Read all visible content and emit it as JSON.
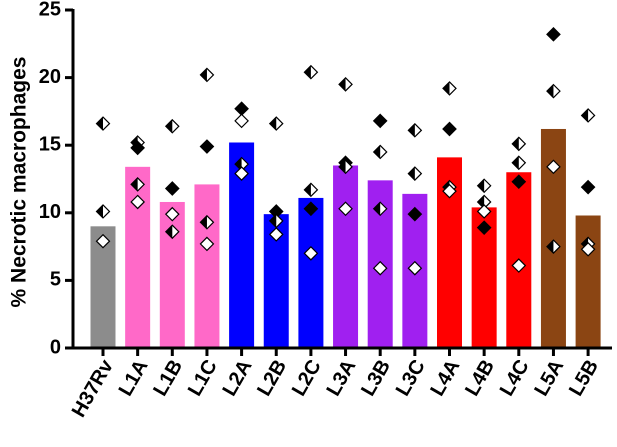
{
  "chart_data": {
    "type": "bar",
    "title": "",
    "xlabel": "",
    "ylabel": "% Necrotic macrophages",
    "ylim": [
      0,
      25
    ],
    "yticks": [
      0,
      5,
      10,
      15,
      20,
      25
    ],
    "grid": false,
    "legend": "none",
    "categories": [
      "H37Rv",
      "L1A",
      "L1B",
      "L1C",
      "L2A",
      "L2B",
      "L2C",
      "L3A",
      "L3B",
      "L3C",
      "L4A",
      "L4B",
      "L4C",
      "L5A",
      "L5B"
    ],
    "values": [
      9.0,
      13.4,
      10.8,
      12.1,
      15.2,
      9.9,
      11.1,
      13.5,
      12.4,
      11.4,
      14.1,
      10.4,
      13.0,
      16.2,
      9.8
    ],
    "colors": [
      "#8c8c8c",
      "#ff69c8",
      "#ff69c8",
      "#ff69c8",
      "#0000ff",
      "#0000ff",
      "#0000ff",
      "#a020f0",
      "#a020f0",
      "#a020f0",
      "#ff0000",
      "#ff0000",
      "#ff0000",
      "#8b4513",
      "#8b4513"
    ],
    "replicates": [
      [
        {
          "v": 16.6,
          "m": "half"
        },
        {
          "v": 10.1,
          "m": "half"
        },
        {
          "v": 7.9,
          "m": "open"
        }
      ],
      [
        {
          "v": 15.2,
          "m": "half"
        },
        {
          "v": 14.8,
          "m": "filled"
        },
        {
          "v": 12.1,
          "m": "half"
        },
        {
          "v": 10.8,
          "m": "open"
        }
      ],
      [
        {
          "v": 16.4,
          "m": "half"
        },
        {
          "v": 11.8,
          "m": "filled"
        },
        {
          "v": 9.9,
          "m": "open"
        },
        {
          "v": 8.6,
          "m": "half"
        }
      ],
      [
        {
          "v": 20.2,
          "m": "half"
        },
        {
          "v": 14.9,
          "m": "filled"
        },
        {
          "v": 9.3,
          "m": "half"
        },
        {
          "v": 7.7,
          "m": "open"
        }
      ],
      [
        {
          "v": 17.7,
          "m": "filled"
        },
        {
          "v": 16.8,
          "m": "open"
        },
        {
          "v": 13.6,
          "m": "half"
        },
        {
          "v": 12.9,
          "m": "open"
        }
      ],
      [
        {
          "v": 16.6,
          "m": "half"
        },
        {
          "v": 10.1,
          "m": "filled"
        },
        {
          "v": 9.4,
          "m": "half"
        },
        {
          "v": 8.4,
          "m": "open"
        }
      ],
      [
        {
          "v": 20.4,
          "m": "half"
        },
        {
          "v": 11.7,
          "m": "half"
        },
        {
          "v": 10.3,
          "m": "filled"
        },
        {
          "v": 7.0,
          "m": "open"
        }
      ],
      [
        {
          "v": 19.5,
          "m": "half"
        },
        {
          "v": 13.7,
          "m": "filled"
        },
        {
          "v": 13.4,
          "m": "half"
        },
        {
          "v": 10.3,
          "m": "open"
        }
      ],
      [
        {
          "v": 16.8,
          "m": "filled"
        },
        {
          "v": 14.5,
          "m": "half"
        },
        {
          "v": 10.3,
          "m": "half"
        },
        {
          "v": 5.9,
          "m": "open"
        }
      ],
      [
        {
          "v": 16.1,
          "m": "half"
        },
        {
          "v": 12.9,
          "m": "half"
        },
        {
          "v": 9.9,
          "m": "filled"
        },
        {
          "v": 5.9,
          "m": "open"
        }
      ],
      [
        {
          "v": 19.2,
          "m": "half"
        },
        {
          "v": 16.2,
          "m": "filled"
        },
        {
          "v": 11.9,
          "m": "half"
        },
        {
          "v": 11.6,
          "m": "open"
        }
      ],
      [
        {
          "v": 12.0,
          "m": "half"
        },
        {
          "v": 10.8,
          "m": "half"
        },
        {
          "v": 10.1,
          "m": "open"
        },
        {
          "v": 8.9,
          "m": "filled"
        }
      ],
      [
        {
          "v": 15.1,
          "m": "half"
        },
        {
          "v": 13.7,
          "m": "half"
        },
        {
          "v": 12.3,
          "m": "filled"
        },
        {
          "v": 6.1,
          "m": "open"
        }
      ],
      [
        {
          "v": 23.2,
          "m": "filled"
        },
        {
          "v": 19.0,
          "m": "half"
        },
        {
          "v": 13.4,
          "m": "open"
        },
        {
          "v": 7.5,
          "m": "half"
        }
      ],
      [
        {
          "v": 17.2,
          "m": "half"
        },
        {
          "v": 11.9,
          "m": "filled"
        },
        {
          "v": 7.7,
          "m": "half"
        },
        {
          "v": 7.3,
          "m": "open"
        }
      ]
    ]
  }
}
